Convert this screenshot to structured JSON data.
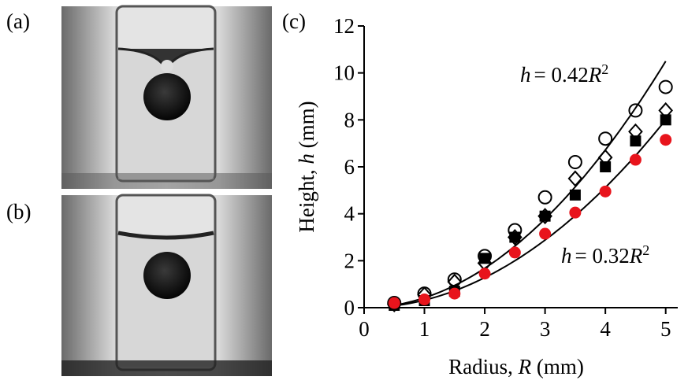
{
  "panels": {
    "a": "(a)",
    "b": "(b)",
    "c": "(c)"
  },
  "chart_data": {
    "type": "scatter",
    "xlabel": [
      "Radius, ",
      "R",
      " (mm)"
    ],
    "ylabel": [
      "Height, ",
      "h",
      " (mm)"
    ],
    "xlim": [
      0,
      5.2
    ],
    "ylim": [
      0,
      12
    ],
    "xticks": [
      0,
      1,
      2,
      3,
      4,
      5
    ],
    "yticks": [
      0,
      2,
      4,
      6,
      8,
      10,
      12
    ],
    "x": [
      0.5,
      1,
      1.5,
      2,
      2.5,
      3,
      3.5,
      4,
      4.5,
      5
    ],
    "series": [
      {
        "marker": "open-circle",
        "color": "#000000",
        "values": [
          0.2,
          0.6,
          1.2,
          2.2,
          3.3,
          4.7,
          6.2,
          7.2,
          8.4,
          9.4
        ]
      },
      {
        "marker": "open-diamond",
        "color": "#000000",
        "values": [
          0.15,
          0.55,
          1.1,
          1.9,
          3.0,
          3.9,
          5.5,
          6.4,
          7.5,
          8.4
        ]
      },
      {
        "marker": "filled-square",
        "color": "#000000",
        "values": [
          0.1,
          0.3,
          0.7,
          2.1,
          3.0,
          3.9,
          4.8,
          6.0,
          7.1,
          8.0
        ]
      },
      {
        "marker": "filled-circle",
        "color": "#e8141c",
        "values": [
          0.2,
          0.35,
          0.6,
          1.45,
          2.35,
          3.15,
          4.05,
          4.95,
          6.3,
          7.15
        ]
      }
    ],
    "fits": [
      {
        "coefficient": 0.42,
        "label": [
          "h",
          "= 0.42",
          "R",
          "2"
        ]
      },
      {
        "coefficient": 0.32,
        "label": [
          "h",
          "= 0.32",
          "R",
          "2"
        ]
      }
    ]
  }
}
